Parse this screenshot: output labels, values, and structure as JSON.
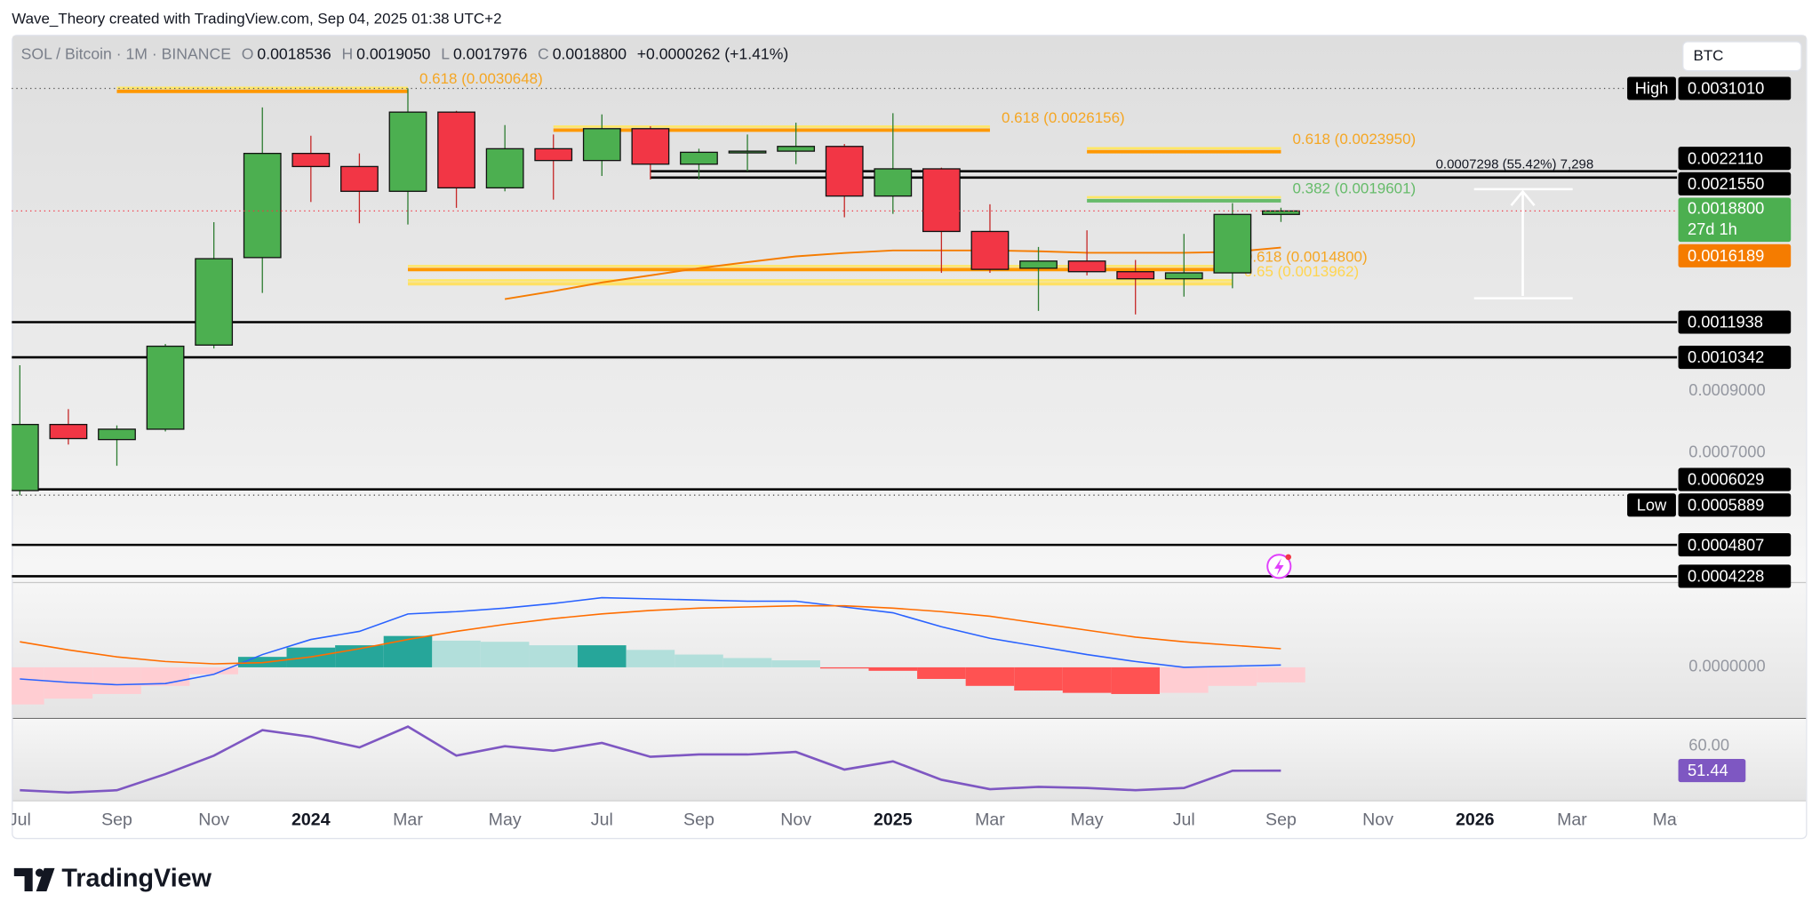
{
  "header": {
    "credit": "Wave_Theory created with TradingView.com, Sep 04, 2025 01:38 UTC+2",
    "symbol": "SOL / Bitcoin · 1M · BINANCE",
    "ohlc": [
      {
        "key": "O",
        "value": "0.0018536"
      },
      {
        "key": "H",
        "value": "0.0019050"
      },
      {
        "key": "L",
        "value": "0.0017976"
      },
      {
        "key": "C",
        "value": "0.0018800"
      }
    ],
    "change": "+0.0000262 (+1.41%)",
    "currency": "BTC"
  },
  "footer": {
    "brand": "TradingView"
  },
  "chart_data": [
    {
      "type": "candlestick",
      "log_scale": true,
      "up_color": "#4caf50",
      "down_color": "#f23645",
      "x": [
        "2023-07",
        "2023-08",
        "2023-09",
        "2023-10",
        "2023-11",
        "2023-12",
        "2024-01",
        "2024-02",
        "2024-03",
        "2024-04",
        "2024-05",
        "2024-06",
        "2024-07",
        "2024-08",
        "2024-09",
        "2024-10",
        "2024-11",
        "2024-12",
        "2025-01",
        "2025-02",
        "2025-03",
        "2025-04",
        "2025-05",
        "2025-06",
        "2025-07",
        "2025-08",
        "2025-09"
      ],
      "open": [
        0.0006,
        0.000786,
        0.000739,
        0.000771,
        0.001087,
        0.001554,
        0.002378,
        0.002254,
        0.002037,
        0.002815,
        0.002066,
        0.002424,
        0.00231,
        0.002631,
        0.002276,
        0.002389,
        0.0024,
        0.002447,
        0.001998,
        0.002233,
        0.001729,
        0.001488,
        0.001532,
        0.001467,
        0.001425,
        0.00146,
        0.0018536
      ],
      "high": [
        0.001001,
        0.000837,
        0.000783,
        0.001092,
        0.001796,
        0.00287,
        0.002556,
        0.002378,
        0.003101,
        0.002829,
        0.00267,
        0.002569,
        0.002789,
        0.002657,
        0.002424,
        0.002569,
        0.002696,
        0.002471,
        0.002802,
        0.002244,
        0.001932,
        0.001623,
        0.001737,
        0.001539,
        0.001712,
        0.001941,
        0.001905
      ],
      "low": [
        0.0005889,
        0.000724,
        0.000664,
        0.000764,
        0.001072,
        0.001345,
        0.00195,
        0.001788,
        0.001779,
        0.001904,
        0.002037,
        0.001969,
        0.002169,
        0.002138,
        0.002138,
        0.002211,
        0.002276,
        0.001832,
        0.001858,
        0.00146,
        0.00146,
        0.00125,
        0.001445,
        0.001232,
        0.001325,
        0.001371,
        0.0017976
      ],
      "close": [
        0.000786,
        0.000742,
        0.000771,
        0.001082,
        0.001547,
        0.002378,
        0.002254,
        0.002037,
        0.002815,
        0.002066,
        0.002424,
        0.00231,
        0.002631,
        0.002276,
        0.002389,
        0.0024,
        0.002447,
        0.001998,
        0.002233,
        0.001729,
        0.001481,
        0.001532,
        0.001467,
        0.001425,
        0.00146,
        0.0018536,
        0.00188
      ],
      "xlim": [
        "2023-07",
        "2026-05"
      ],
      "xticks": [
        {
          "value": "2023-07",
          "label": "Jul"
        },
        {
          "value": "2023-09",
          "label": "Sep"
        },
        {
          "value": "2023-11",
          "label": "Nov"
        },
        {
          "value": "2024-01",
          "label": "2024"
        },
        {
          "value": "2024-03",
          "label": "Mar"
        },
        {
          "value": "2024-05",
          "label": "May"
        },
        {
          "value": "2024-07",
          "label": "Jul"
        },
        {
          "value": "2024-09",
          "label": "Sep"
        },
        {
          "value": "2024-11",
          "label": "Nov"
        },
        {
          "value": "2025-01",
          "label": "2025"
        },
        {
          "value": "2025-03",
          "label": "Mar"
        },
        {
          "value": "2025-05",
          "label": "May"
        },
        {
          "value": "2025-07",
          "label": "Jul"
        },
        {
          "value": "2025-09",
          "label": "Sep"
        },
        {
          "value": "2025-11",
          "label": "Nov"
        },
        {
          "value": "2026-01",
          "label": "2026"
        },
        {
          "value": "2026-03",
          "label": "Mar"
        },
        {
          "value": "2026-05",
          "label": "May"
        }
      ],
      "ylim": [
        0.000414,
        0.00386
      ],
      "yticks": [
        {
          "value": 0.0009,
          "label": "0.0009000"
        },
        {
          "value": 0.0007,
          "label": "0.0007000"
        }
      ],
      "ma": {
        "color": "#f57c00",
        "values": [
          null,
          null,
          null,
          null,
          null,
          null,
          null,
          null,
          null,
          null,
          0.001312,
          0.001355,
          0.001404,
          0.001445,
          0.001488,
          0.001525,
          0.001562,
          0.001583,
          0.0016,
          0.0016,
          0.0016,
          0.001595,
          0.001585,
          0.001585,
          0.001585,
          0.00159,
          0.0016189
        ],
        "value_labels": [
          null,
          null,
          null,
          null,
          null,
          null,
          null,
          null,
          null,
          null,
          null,
          null,
          null,
          null,
          null,
          null,
          null,
          null,
          null,
          null,
          null,
          null,
          null,
          null,
          null,
          null,
          "0.0016189"
        ]
      },
      "fibs": [
        {
          "label": "0.618 (0.0030648)",
          "value": 0.0030648,
          "from": "2023-09",
          "to": "2024-03",
          "color": "#ff9800",
          "text_color": "#f5a623"
        },
        {
          "label": "0.618 (0.0026156)",
          "value": 0.0026156,
          "from": "2024-06",
          "to": "2025-03",
          "color": "#ff9800",
          "text_color": "#f5a623"
        },
        {
          "label": "0.618 (0.0023950)",
          "value": 0.002395,
          "from": "2025-05",
          "to": "2025-09",
          "color": "#ff9800",
          "text_color": "#f5a623"
        },
        {
          "label": "0.382 (0.0019601)",
          "value": 0.0019601,
          "from": "2025-05",
          "to": "2025-09",
          "color": "#66bb6a",
          "text_color": "#66bb6a"
        },
        {
          "label": "0.618 (0.0014800)",
          "value": 0.00148,
          "from": "2024-03",
          "to": "2025-08",
          "color": "#ff9800",
          "text_color": "#f5a623"
        },
        {
          "label": "0.65 (0.0013962)",
          "value": 0.0013962,
          "from": "2024-03",
          "to": "2025-08",
          "color": "#ffe066",
          "text_color": "#ffd54f"
        }
      ],
      "levels": [
        {
          "value": 0.003101,
          "label": "0.0031010",
          "tag": "High",
          "line": "dotted"
        },
        {
          "value": 0.002211,
          "label": "0.0022110",
          "from": "2024-08",
          "line": "solid"
        },
        {
          "value": 0.002155,
          "label": "0.0021550",
          "from": "2024-08",
          "line": "solid"
        },
        {
          "value": 0.0011938,
          "label": "0.0011938",
          "line": "solid"
        },
        {
          "value": 0.0010342,
          "label": "0.0010342",
          "line": "solid"
        },
        {
          "value": 0.0006029,
          "label": "0.0006029",
          "line": "solid"
        },
        {
          "value": 0.0005889,
          "label": "0.0005889",
          "tag": "Low",
          "line": "dotted"
        },
        {
          "value": 0.0004807,
          "label": "0.0004807",
          "line": "solid"
        },
        {
          "value": 0.0004228,
          "label": "0.0004228",
          "line": "solid"
        }
      ],
      "last_price": {
        "value": 0.00188,
        "label": "0.0018800",
        "countdown": "27d 1h",
        "color": "#4caf50",
        "line_color": "#f23645"
      },
      "measure_label": "0.0007298 (55.42%) 7,298"
    },
    {
      "type": "bar",
      "x": [
        "2023-07",
        "2023-08",
        "2023-09",
        "2023-10",
        "2023-11",
        "2023-12",
        "2024-01",
        "2024-02",
        "2024-03",
        "2024-04",
        "2024-05",
        "2024-06",
        "2024-07",
        "2024-08",
        "2024-09",
        "2024-10",
        "2024-11",
        "2024-12",
        "2025-01",
        "2025-02",
        "2025-03",
        "2025-04",
        "2025-05",
        "2025-06",
        "2025-07",
        "2025-08",
        "2025-09"
      ],
      "values": [
        -3.2e-05,
        -2.7e-05,
        -2.3e-05,
        -1.6e-05,
        -6e-06,
        9e-06,
        1.7e-05,
        1.9e-05,
        2.7e-05,
        2.3e-05,
        2.2e-05,
        1.9e-05,
        1.9e-05,
        1.5e-05,
        1.1e-05,
        8e-06,
        6e-06,
        -1e-06,
        -3e-06,
        -1e-05,
        -1.6e-05,
        -2e-05,
        -2.2e-05,
        -2.3e-05,
        -2.2e-05,
        -1.6e-05,
        -1.3e-05
      ],
      "colors": [
        "#ffcdd2",
        "#ffcdd2",
        "#ffcdd2",
        "#ffcdd2",
        "#ffcdd2",
        "#26a69a",
        "#26a69a",
        "#26a69a",
        "#26a69a",
        "#b2dfdb",
        "#b2dfdb",
        "#b2dfdb",
        "#26a69a",
        "#b2dfdb",
        "#b2dfdb",
        "#b2dfdb",
        "#b2dfdb",
        "#ff5252",
        "#ff5252",
        "#ff5252",
        "#ff5252",
        "#ff5252",
        "#ff5252",
        "#ff5252",
        "#ffcdd2",
        "#ffcdd2",
        "#ffcdd2"
      ],
      "series": [
        {
          "color": "#2962ff",
          "values": [
            -1e-05,
            -1.3e-05,
            -1.5e-05,
            -1.4e-05,
            -6e-06,
            1.1e-05,
            2.4e-05,
            3.1e-05,
            4.6e-05,
            4.8e-05,
            5.1e-05,
            5.5e-05,
            6e-05,
            5.9e-05,
            5.8e-05,
            5.7e-05,
            5.7e-05,
            5.2e-05,
            4.7e-05,
            3.5e-05,
            2.5e-05,
            1.8e-05,
            1.1e-05,
            5e-06,
            0,
            1e-06,
            2e-06
          ]
        },
        {
          "color": "#ff6d00",
          "values": [
            2.2e-05,
            1.5e-05,
            9e-06,
            5e-06,
            3e-06,
            4e-06,
            9e-06,
            1.6e-05,
            2.4e-05,
            3.1e-05,
            3.7e-05,
            4.2e-05,
            4.6e-05,
            4.9e-05,
            5.1e-05,
            5.2e-05,
            5.3e-05,
            5.3e-05,
            5.1e-05,
            4.8e-05,
            4.4e-05,
            3.8e-05,
            3.2e-05,
            2.6e-05,
            2.2e-05,
            1.9e-05,
            1.6e-05
          ]
        }
      ],
      "ylim": [
        -4.3e-05,
        7.2e-05
      ],
      "yticks": [
        {
          "value": 0,
          "label": "0.0000000"
        }
      ]
    },
    {
      "type": "line",
      "x": [
        "2023-07",
        "2023-08",
        "2023-09",
        "2023-10",
        "2023-11",
        "2023-12",
        "2024-01",
        "2024-02",
        "2024-03",
        "2024-04",
        "2024-05",
        "2024-06",
        "2024-07",
        "2024-08",
        "2024-09",
        "2024-10",
        "2024-11",
        "2024-12",
        "2025-01",
        "2025-02",
        "2025-03",
        "2025-04",
        "2025-05",
        "2025-06",
        "2025-07",
        "2025-08",
        "2025-09"
      ],
      "series": [
        {
          "color": "#7e57c2",
          "values": [
            44.5,
            43.7,
            44.5,
            50.2,
            56.7,
            65.7,
            63.3,
            59.6,
            66.9,
            56.7,
            60,
            58.4,
            61.2,
            56.3,
            57.1,
            57.1,
            58,
            51.8,
            54.7,
            48.2,
            44.9,
            45.7,
            45.3,
            44.5,
            45.3,
            51.4,
            51.44
          ]
        }
      ],
      "ylim": [
        40.8,
        69.4
      ],
      "yticks": [
        {
          "value": 60,
          "label": "60.00"
        }
      ]
    }
  ]
}
